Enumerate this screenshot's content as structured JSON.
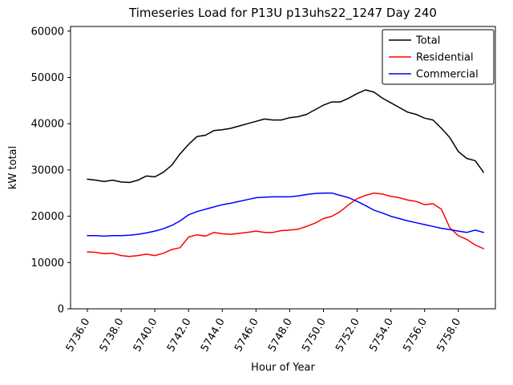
{
  "chart_data": {
    "type": "line",
    "title": "Timeseries Load for P13U p13uhs22_1247  Day 240",
    "xlabel": "Hour of Year",
    "ylabel": "kW total",
    "xlim": [
      5735.0,
      5760.2
    ],
    "ylim": [
      0,
      61000
    ],
    "grid": false,
    "legend_position": "upper right",
    "frame_color": "#000000",
    "background_color": "#ffffff",
    "xticks": {
      "values": [
        5736,
        5738,
        5740,
        5742,
        5744,
        5746,
        5748,
        5750,
        5752,
        5754,
        5756,
        5758
      ],
      "labels": [
        "5736.0",
        "5738.0",
        "5740.0",
        "5742.0",
        "5744.0",
        "5746.0",
        "5748.0",
        "5750.0",
        "5752.0",
        "5754.0",
        "5756.0",
        "5758.0"
      ],
      "rotation": 60
    },
    "yticks": {
      "values": [
        0,
        10000,
        20000,
        30000,
        40000,
        50000,
        60000
      ],
      "labels": [
        "0",
        "10000",
        "20000",
        "30000",
        "40000",
        "50000",
        "60000"
      ]
    },
    "x": [
      5736,
      5736.5,
      5737,
      5737.5,
      5738,
      5738.5,
      5739,
      5739.5,
      5740,
      5740.5,
      5741,
      5741.5,
      5742,
      5742.5,
      5743,
      5743.5,
      5744,
      5744.5,
      5745,
      5745.5,
      5746,
      5746.5,
      5747,
      5747.5,
      5748,
      5748.5,
      5749,
      5749.5,
      5750,
      5750.5,
      5751,
      5751.5,
      5752,
      5752.5,
      5753,
      5753.5,
      5754,
      5754.5,
      5755,
      5755.5,
      5756,
      5756.5,
      5757,
      5757.5,
      5758,
      5758.5,
      5759,
      5759.5
    ],
    "series": [
      {
        "name": "Total",
        "color": "#000000",
        "values": [
          28000,
          27800,
          27500,
          27800,
          27400,
          27300,
          27800,
          28700,
          28500,
          29500,
          31000,
          33500,
          35500,
          37200,
          37500,
          38500,
          38700,
          39000,
          39500,
          40000,
          40500,
          41000,
          40800,
          40800,
          41300,
          41500,
          42000,
          43000,
          44000,
          44700,
          44700,
          45500,
          46500,
          47300,
          46800,
          45500,
          44500,
          43500,
          42500,
          42000,
          41200,
          40800,
          39000,
          37000,
          34000,
          32500,
          32000,
          29500
        ]
      },
      {
        "name": "Residential",
        "color": "#ff0000",
        "values": [
          12300,
          12200,
          11900,
          12000,
          11500,
          11300,
          11500,
          11800,
          11500,
          12000,
          12800,
          13200,
          15500,
          16000,
          15700,
          16500,
          16200,
          16100,
          16300,
          16500,
          16800,
          16500,
          16500,
          16900,
          17000,
          17200,
          17800,
          18500,
          19500,
          20000,
          21000,
          22500,
          23800,
          24500,
          25000,
          24800,
          24300,
          24000,
          23500,
          23200,
          22500,
          22700,
          21500,
          17500,
          15800,
          15000,
          13800,
          13000
        ]
      },
      {
        "name": "Commercial",
        "color": "#0000ff",
        "values": [
          15800,
          15800,
          15700,
          15800,
          15800,
          15900,
          16100,
          16400,
          16800,
          17300,
          18000,
          19000,
          20300,
          21000,
          21500,
          22000,
          22500,
          22800,
          23200,
          23600,
          24000,
          24100,
          24200,
          24200,
          24200,
          24400,
          24700,
          24900,
          25000,
          25000,
          24500,
          24000,
          23200,
          22300,
          21300,
          20700,
          20000,
          19500,
          19000,
          18600,
          18200,
          17800,
          17400,
          17100,
          16800,
          16500,
          17000,
          16500
        ]
      }
    ],
    "legend": [
      {
        "label": "Total",
        "color": "#000000"
      },
      {
        "label": "Residential",
        "color": "#ff0000"
      },
      {
        "label": "Commercial",
        "color": "#0000ff"
      }
    ]
  }
}
